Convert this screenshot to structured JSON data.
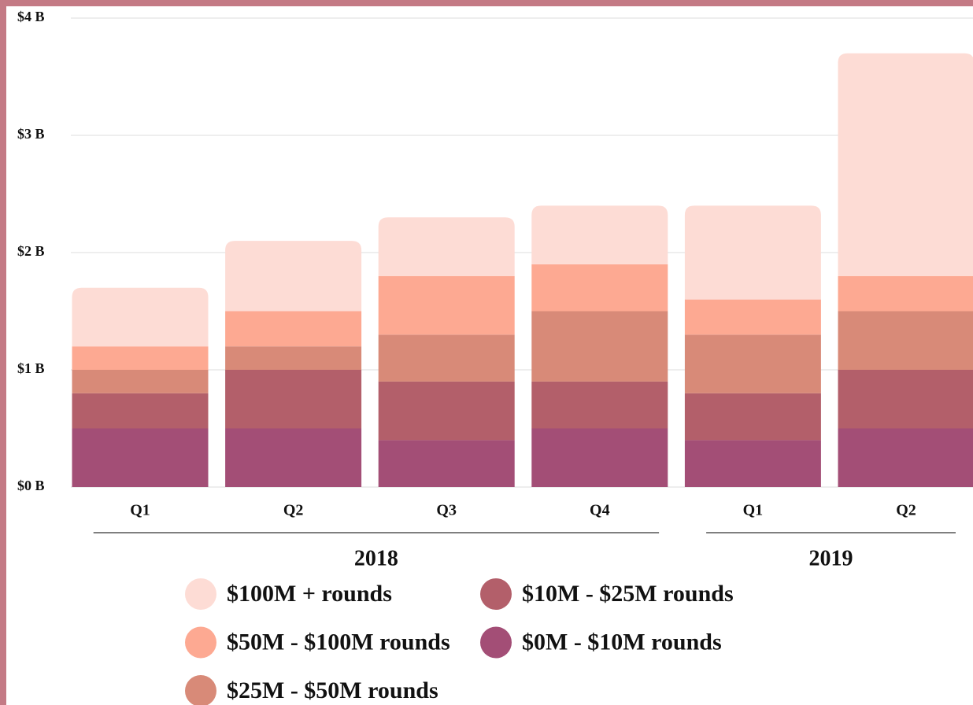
{
  "chart_data": {
    "type": "stacked_bar",
    "categories": [
      "Q1",
      "Q2",
      "Q3",
      "Q4",
      "Q1",
      "Q2"
    ],
    "groups": [
      {
        "label": "2018",
        "size": 4
      },
      {
        "label": "2019",
        "size": 2
      }
    ],
    "series": [
      {
        "name": "$100M + rounds",
        "color": "#fddcd5",
        "values": [
          0.5,
          0.6,
          0.5,
          0.5,
          0.8,
          1.9
        ]
      },
      {
        "name": "$50M - $100M rounds",
        "color": "#fda992",
        "values": [
          0.2,
          0.3,
          0.5,
          0.4,
          0.3,
          0.3
        ]
      },
      {
        "name": "$25M - $50M rounds",
        "color": "#d88a78",
        "values": [
          0.2,
          0.2,
          0.4,
          0.6,
          0.5,
          0.5
        ]
      },
      {
        "name": "$10M - $25M rounds",
        "color": "#b35f6a",
        "values": [
          0.3,
          0.5,
          0.5,
          0.4,
          0.4,
          0.5
        ]
      },
      {
        "name": "$0M - $10M rounds",
        "color": "#a34e76",
        "values": [
          0.5,
          0.5,
          0.4,
          0.5,
          0.4,
          0.5
        ]
      }
    ],
    "ylim": [
      0,
      4
    ],
    "yticks": [
      {
        "value": 0,
        "label": "$0 B"
      },
      {
        "value": 1,
        "label": "$1 B"
      },
      {
        "value": 2,
        "label": "$2 B"
      },
      {
        "value": 3,
        "label": "$3 B"
      },
      {
        "value": 4,
        "label": "$4 B"
      }
    ],
    "grid": true
  }
}
